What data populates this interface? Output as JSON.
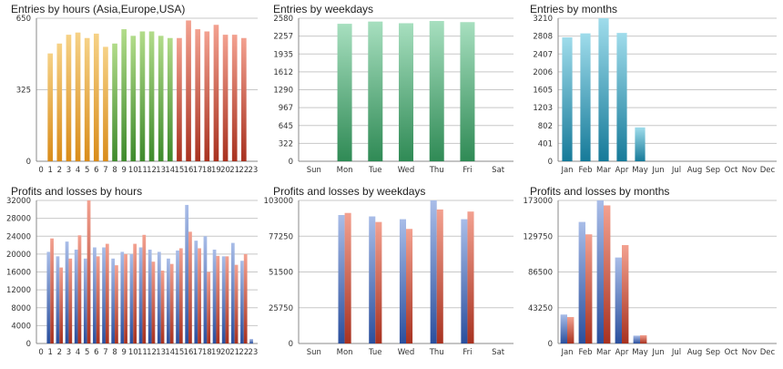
{
  "colors": {
    "orange": [
      "#f6d287",
      "#d98c1a"
    ],
    "green": [
      "#b2dc8a",
      "#3e8a2c"
    ],
    "red": [
      "#f3a190",
      "#a83220"
    ],
    "teal": [
      "#a7dfbf",
      "#2f8a55"
    ],
    "cyan": [
      "#9fdceb",
      "#167a99"
    ],
    "blue": [
      "#a9bde8",
      "#2a4f9d"
    ],
    "grid": "#c8c8c8",
    "axis": "#888888"
  },
  "chart_data": [
    {
      "id": "entries-hours",
      "type": "bar",
      "title": "Entries by hours (Asia,Europe,USA)",
      "categories": [
        "0",
        "1",
        "2",
        "3",
        "4",
        "5",
        "6",
        "7",
        "8",
        "9",
        "10",
        "11",
        "12",
        "13",
        "14",
        "15",
        "16",
        "17",
        "18",
        "19",
        "20",
        "21",
        "22",
        "23"
      ],
      "values": [
        0,
        490,
        535,
        575,
        585,
        560,
        580,
        520,
        535,
        600,
        570,
        590,
        590,
        570,
        560,
        560,
        640,
        600,
        590,
        620,
        575,
        575,
        560,
        0
      ],
      "bar_color_keys": [
        "orange",
        "orange",
        "orange",
        "orange",
        "orange",
        "orange",
        "orange",
        "orange",
        "green",
        "green",
        "green",
        "green",
        "green",
        "green",
        "green",
        "red",
        "red",
        "red",
        "red",
        "red",
        "red",
        "red",
        "red",
        "red"
      ],
      "yticks": [
        0,
        325,
        650
      ],
      "ylim": [
        0,
        650
      ],
      "grid": true
    },
    {
      "id": "entries-weekdays",
      "type": "bar",
      "title": "Entries by weekdays",
      "categories": [
        "Sun",
        "Mon",
        "Tue",
        "Wed",
        "Thu",
        "Fri",
        "Sat"
      ],
      "values": [
        0,
        2480,
        2520,
        2490,
        2530,
        2510,
        0
      ],
      "bar_color_keys": [
        "teal",
        "teal",
        "teal",
        "teal",
        "teal",
        "teal",
        "teal"
      ],
      "yticks": [
        0,
        322,
        645,
        967,
        1290,
        1612,
        1935,
        2257,
        2580
      ],
      "ylim": [
        0,
        2580
      ],
      "grid": true
    },
    {
      "id": "entries-months",
      "type": "bar",
      "title": "Entries by months",
      "categories": [
        "Jan",
        "Feb",
        "Mar",
        "Apr",
        "May",
        "Jun",
        "Jul",
        "Aug",
        "Sep",
        "Oct",
        "Nov",
        "Dec"
      ],
      "values": [
        2780,
        2870,
        3210,
        2880,
        760,
        0,
        0,
        0,
        0,
        0,
        0,
        0
      ],
      "bar_color_keys": [
        "cyan",
        "cyan",
        "cyan",
        "cyan",
        "cyan",
        "cyan",
        "cyan",
        "cyan",
        "cyan",
        "cyan",
        "cyan",
        "cyan"
      ],
      "yticks": [
        0,
        401,
        802,
        1203,
        1605,
        2006,
        2407,
        2808,
        3210
      ],
      "ylim": [
        0,
        3210
      ],
      "grid": true
    },
    {
      "id": "pl-hours",
      "type": "bar",
      "title": "Profits and losses by hours",
      "categories": [
        "0",
        "1",
        "2",
        "3",
        "4",
        "5",
        "6",
        "7",
        "8",
        "9",
        "10",
        "11",
        "12",
        "13",
        "14",
        "15",
        "16",
        "17",
        "18",
        "19",
        "20",
        "21",
        "22",
        "23"
      ],
      "series": [
        {
          "color_key": "blue",
          "values": [
            0,
            20500,
            19500,
            22800,
            21000,
            19000,
            21500,
            21500,
            19000,
            20500,
            20000,
            21500,
            21000,
            20500,
            19000,
            20800,
            31000,
            23000,
            24000,
            21000,
            19500,
            22500,
            18500,
            1000
          ]
        },
        {
          "color_key": "red",
          "values": [
            0,
            23500,
            17000,
            19000,
            24200,
            32000,
            19500,
            22300,
            17500,
            20000,
            22300,
            24300,
            18300,
            16300,
            17800,
            21300,
            25000,
            21300,
            16000,
            19600,
            19500,
            17600,
            20000,
            0
          ]
        }
      ],
      "yticks": [
        0,
        4000,
        8000,
        12000,
        16000,
        20000,
        24000,
        28000,
        32000
      ],
      "ylim": [
        0,
        32000
      ],
      "grid": true
    },
    {
      "id": "pl-weekdays",
      "type": "bar",
      "title": "Profits and losses by weekdays",
      "categories": [
        "Sun",
        "Mon",
        "Tue",
        "Wed",
        "Thu",
        "Fri",
        "Sat"
      ],
      "series": [
        {
          "color_key": "blue",
          "values": [
            0,
            92500,
            91500,
            89500,
            103000,
            89500,
            0
          ]
        },
        {
          "color_key": "red",
          "values": [
            0,
            94000,
            87500,
            82500,
            96500,
            95000,
            0
          ]
        }
      ],
      "yticks": [
        0,
        25750,
        51500,
        77250,
        103000
      ],
      "ylim": [
        0,
        103000
      ],
      "grid": true
    },
    {
      "id": "pl-months",
      "type": "bar",
      "title": "Profits and losses by months",
      "categories": [
        "Jan",
        "Feb",
        "Mar",
        "Apr",
        "May",
        "Jun",
        "Jul",
        "Aug",
        "Sep",
        "Oct",
        "Nov",
        "Dec"
      ],
      "series": [
        {
          "color_key": "blue",
          "values": [
            35000,
            147000,
            173000,
            104000,
            9500,
            0,
            0,
            0,
            0,
            0,
            0,
            0
          ]
        },
        {
          "color_key": "red",
          "values": [
            32000,
            132000,
            167000,
            119000,
            10000,
            0,
            0,
            0,
            0,
            0,
            0,
            0
          ]
        }
      ],
      "yticks": [
        0,
        43250,
        86500,
        129750,
        173000
      ],
      "ylim": [
        0,
        173000
      ],
      "grid": true
    }
  ]
}
